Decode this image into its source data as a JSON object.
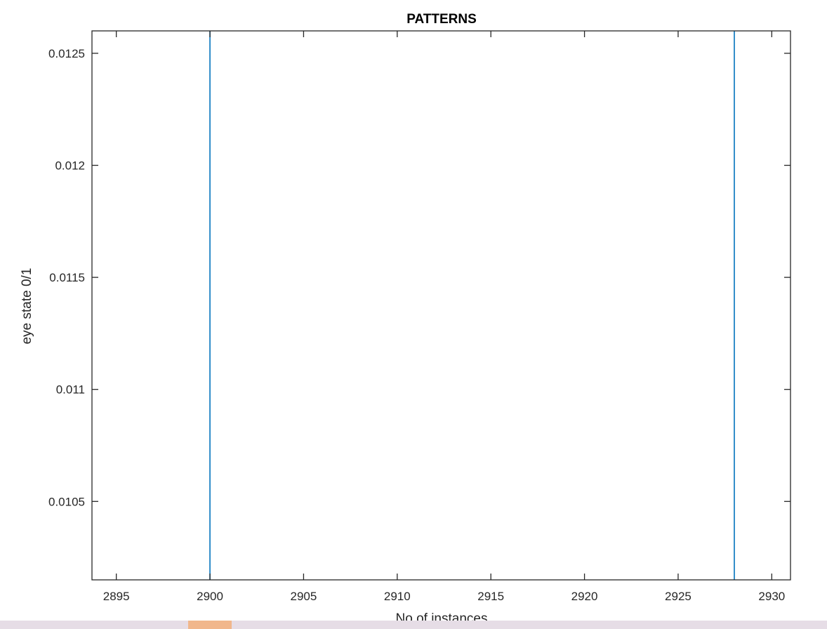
{
  "chart_data": {
    "type": "line",
    "title": "PATTERNS",
    "xlabel": "No of instances",
    "ylabel": "eye state 0/1",
    "xlim": [
      2893.7,
      2931
    ],
    "ylim": [
      0.01015,
      0.0126
    ],
    "x_ticks": [
      2895,
      2900,
      2905,
      2910,
      2915,
      2920,
      2925,
      2930
    ],
    "x_tick_labels": [
      "2895",
      "2900",
      "2905",
      "2910",
      "2915",
      "2920",
      "2925",
      "2930"
    ],
    "y_ticks": [
      0.0105,
      0.011,
      0.0115,
      0.012,
      0.0125
    ],
    "y_tick_labels": [
      "0.0105",
      "0.011",
      "0.0115",
      "0.012",
      "0.0125"
    ],
    "grid": false,
    "series": [
      {
        "color": "#0072BD",
        "segments": [
          {
            "x": [
              2900,
              2900
            ],
            "y": [
              0.01015,
              0.0126
            ]
          },
          {
            "x": [
              2928,
              2928
            ],
            "y": [
              0.01015,
              0.0126
            ]
          }
        ]
      }
    ]
  }
}
